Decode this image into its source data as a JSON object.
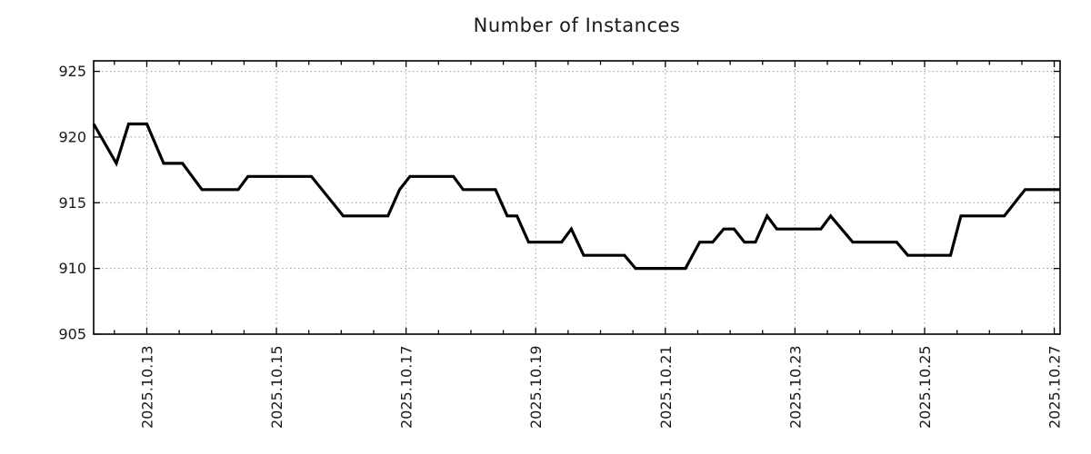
{
  "chart_data": {
    "type": "line",
    "title": "Number of Instances",
    "legend": false,
    "grid": true,
    "background_color": "#ffffff",
    "border_color": "#000000",
    "grid_color": "#9a9a9a",
    "text_color": "#1a1a1a",
    "x_axis": {
      "unit": "date (day of October 2025)",
      "range": [
        12.18,
        27.09
      ],
      "major_tick_days": [
        13,
        15,
        17,
        19,
        21,
        23,
        25,
        27
      ],
      "major_tick_labels": [
        "2025.10.13",
        "2025.10.15",
        "2025.10.17",
        "2025.10.19",
        "2025.10.21",
        "2025.10.23",
        "2025.10.25",
        "2025.10.27"
      ],
      "minor_tick_interval_days": 0.5
    },
    "y_axis": {
      "range": [
        905,
        925.8
      ],
      "major_ticks": [
        905,
        910,
        915,
        920,
        925
      ],
      "major_tick_labels": [
        "905",
        "910",
        "915",
        "920",
        "925"
      ]
    },
    "series": [
      {
        "name": "instances",
        "color": "#000000",
        "line_width": 3.2,
        "points": [
          [
            12.18,
            921
          ],
          [
            12.53,
            918
          ],
          [
            12.72,
            921
          ],
          [
            13.0,
            921
          ],
          [
            13.26,
            918
          ],
          [
            13.55,
            918
          ],
          [
            13.85,
            916
          ],
          [
            14.41,
            916
          ],
          [
            14.56,
            917
          ],
          [
            15.54,
            917
          ],
          [
            16.03,
            914
          ],
          [
            16.72,
            914
          ],
          [
            16.9,
            916
          ],
          [
            17.06,
            917
          ],
          [
            17.73,
            917
          ],
          [
            17.88,
            916
          ],
          [
            18.38,
            916
          ],
          [
            18.56,
            914
          ],
          [
            18.71,
            914
          ],
          [
            18.89,
            912
          ],
          [
            19.4,
            912
          ],
          [
            19.55,
            913
          ],
          [
            19.74,
            911
          ],
          [
            20.37,
            911
          ],
          [
            20.54,
            910
          ],
          [
            21.31,
            910
          ],
          [
            21.53,
            912
          ],
          [
            21.73,
            912
          ],
          [
            21.9,
            913
          ],
          [
            22.06,
            913
          ],
          [
            22.22,
            912
          ],
          [
            22.39,
            912
          ],
          [
            22.57,
            914
          ],
          [
            22.72,
            913
          ],
          [
            23.4,
            913
          ],
          [
            23.55,
            914
          ],
          [
            23.89,
            912
          ],
          [
            24.57,
            912
          ],
          [
            24.74,
            911
          ],
          [
            25.4,
            911
          ],
          [
            25.56,
            914
          ],
          [
            26.23,
            914
          ],
          [
            26.55,
            916
          ],
          [
            27.09,
            916
          ]
        ]
      }
    ]
  }
}
